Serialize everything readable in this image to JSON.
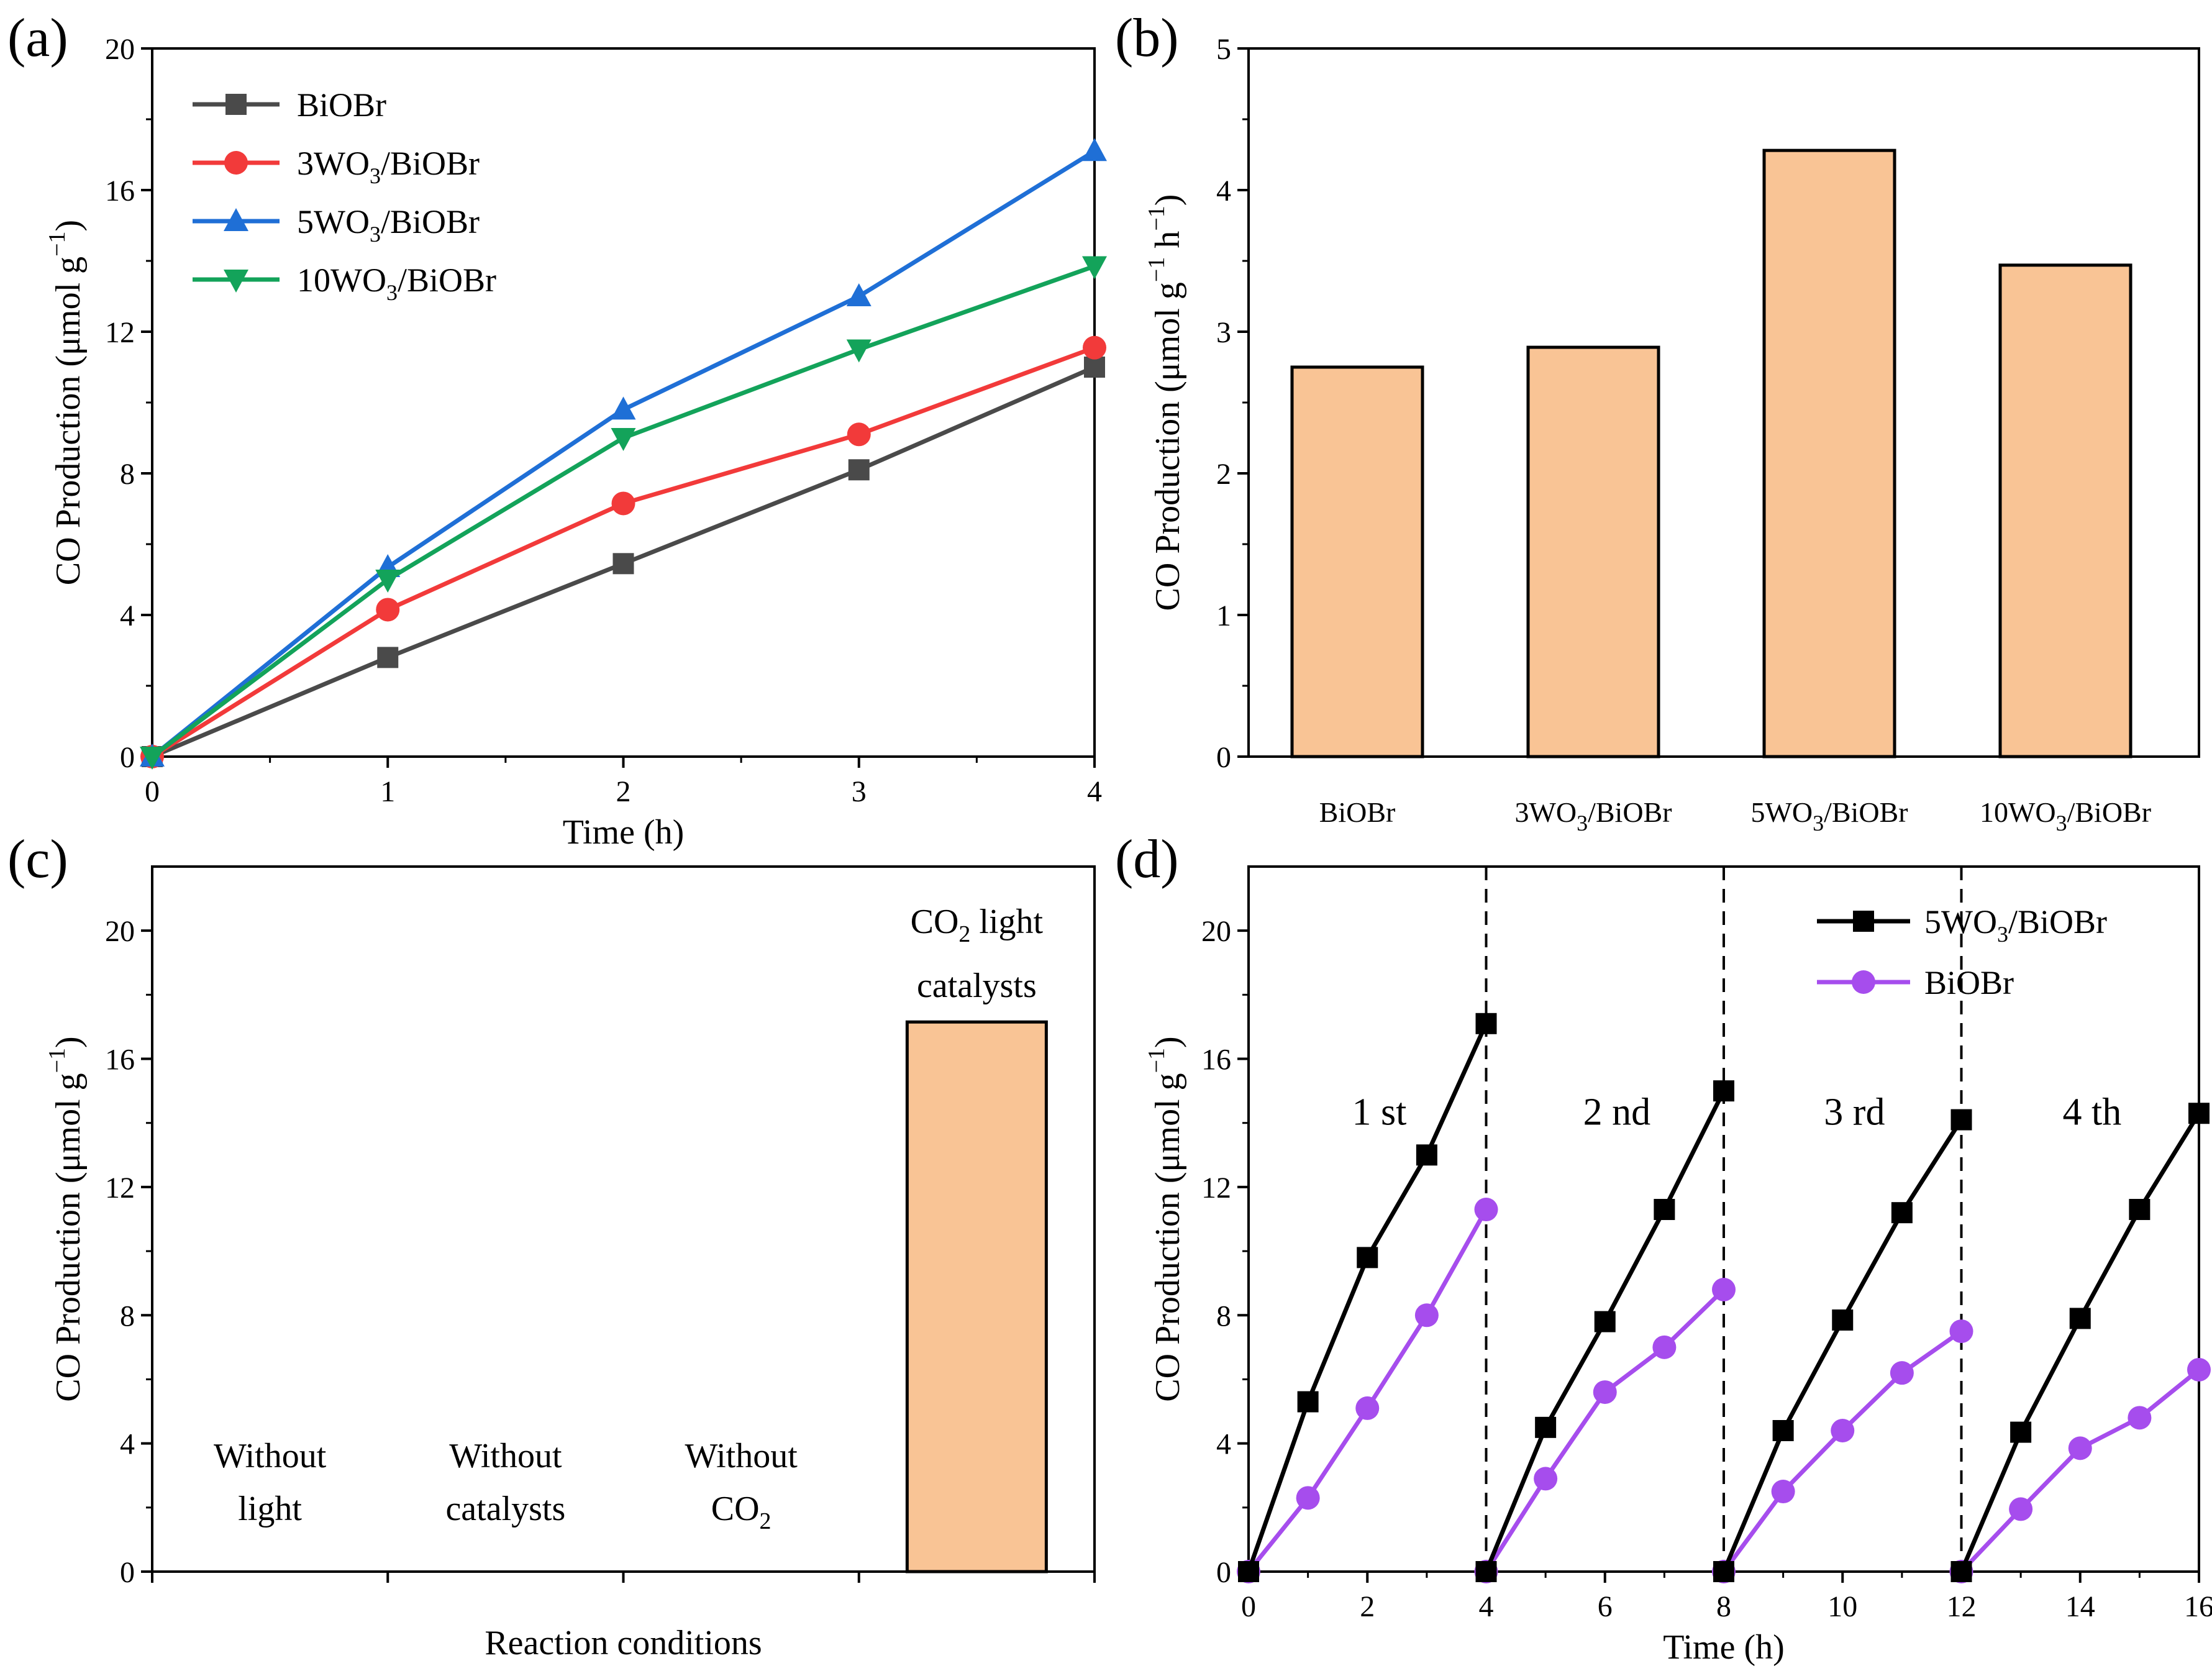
{
  "colors": {
    "gray": "#4a4a4a",
    "red": "#f23a3a",
    "blue": "#1f6fd6",
    "green": "#13a35a",
    "bar_fill": "#f9c495",
    "black": "#000000",
    "purple": "#a64ded"
  },
  "chart_data": [
    {
      "panel": "(a)",
      "type": "line",
      "xlabel": "Time (h)",
      "ylabel_main": "CO Production (μmol g",
      "ylabel_sup": "−1",
      "ylabel_end": ")",
      "xlim": [
        0,
        4
      ],
      "ylim": [
        0,
        20
      ],
      "xticks": [
        "0",
        "1",
        "2",
        "3",
        "4"
      ],
      "yticks": [
        "0",
        "4",
        "8",
        "12",
        "16",
        "20"
      ],
      "x": [
        0,
        1,
        2,
        3,
        4
      ],
      "legend_position": "top-left",
      "series": [
        {
          "name": "BiOBr",
          "legend_pre": "BiOBr",
          "legend_sub": "",
          "legend_post": "",
          "marker": "square",
          "color_key": "gray",
          "values": [
            0,
            2.8,
            5.45,
            8.1,
            11.0
          ]
        },
        {
          "name": "3WO3/BiOBr",
          "legend_pre": "3WO",
          "legend_sub": "3",
          "legend_post": "/BiOBr",
          "marker": "circle",
          "color_key": "red",
          "values": [
            0,
            4.15,
            7.15,
            9.1,
            11.55
          ]
        },
        {
          "name": "5WO3/BiOBr",
          "legend_pre": "5WO",
          "legend_sub": "3",
          "legend_post": "/BiOBr",
          "marker": "triangle-up",
          "color_key": "blue",
          "values": [
            0,
            5.35,
            9.8,
            13.0,
            17.1
          ]
        },
        {
          "name": "10WO3/BiOBr",
          "legend_pre": "10WO",
          "legend_sub": "3",
          "legend_post": "/BiOBr",
          "marker": "triangle-down",
          "color_key": "green",
          "values": [
            0,
            5.0,
            9.0,
            11.5,
            13.85
          ]
        }
      ]
    },
    {
      "panel": "(b)",
      "type": "bar",
      "ylabel_main": "CO Production (μmol g",
      "ylabel_sup1": "−1",
      "ylabel_mid": " h",
      "ylabel_sup2": "−1",
      "ylabel_end": ")",
      "ylim": [
        0,
        5
      ],
      "yticks": [
        "0",
        "1",
        "2",
        "3",
        "4",
        "5"
      ],
      "categories": [
        {
          "pre": "BiOBr",
          "sub": "",
          "post": ""
        },
        {
          "pre": "3WO",
          "sub": "3",
          "post": "/BiOBr"
        },
        {
          "pre": "5WO",
          "sub": "3",
          "post": "/BiOBr"
        },
        {
          "pre": "10WO",
          "sub": "3",
          "post": "/BiOBr"
        }
      ],
      "values": [
        2.75,
        2.89,
        4.28,
        3.47
      ]
    },
    {
      "panel": "(c)",
      "type": "bar",
      "xlabel": "Reaction conditions",
      "ylabel_main": "CO Production (μmol g",
      "ylabel_sup": "−1",
      "ylabel_end": ")",
      "ylim": [
        0,
        22
      ],
      "yticks": [
        "0",
        "4",
        "8",
        "12",
        "16",
        "20"
      ],
      "conditions": [
        {
          "line1": "Without",
          "line2": "light",
          "line2_sub": "",
          "value": 0
        },
        {
          "line1": "Without",
          "line2": "catalysts",
          "line2_sub": "",
          "value": 0
        },
        {
          "line1": "Without",
          "line2": "CO",
          "line2_sub": "2",
          "value": 0
        },
        {
          "line1_pre": "CO",
          "line1_sub": "2",
          "line1_post": "  light",
          "line2": "catalysts",
          "value": 17.15
        }
      ]
    },
    {
      "panel": "(d)",
      "type": "line",
      "xlabel": "Time (h)",
      "ylabel_main": "CO Production (μmol g",
      "ylabel_sup": "−1",
      "ylabel_end": ")",
      "xlim": [
        0,
        16
      ],
      "ylim": [
        0,
        22
      ],
      "xticks": [
        "0",
        "2",
        "4",
        "6",
        "8",
        "10",
        "12",
        "14",
        "16"
      ],
      "yticks": [
        "0",
        "4",
        "8",
        "12",
        "16",
        "20"
      ],
      "cycle_boundaries": [
        4,
        8,
        12
      ],
      "cycle_labels": [
        "1 st",
        "2 nd",
        "3 rd",
        "4 th"
      ],
      "legend_position": "top-right",
      "series": [
        {
          "name": "5WO3/BiOBr",
          "legend_pre": "5WO",
          "legend_sub": "3",
          "legend_post": "/BiOBr",
          "marker": "square",
          "color_key": "black",
          "cycles": [
            [
              [
                0,
                0
              ],
              [
                1,
                5.3
              ],
              [
                2,
                9.8
              ],
              [
                3,
                13.0
              ],
              [
                4,
                17.1
              ]
            ],
            [
              [
                4,
                0
              ],
              [
                5,
                4.5
              ],
              [
                6,
                7.8
              ],
              [
                7,
                11.3
              ],
              [
                8,
                15.0
              ]
            ],
            [
              [
                8,
                0
              ],
              [
                9,
                4.4
              ],
              [
                10,
                7.85
              ],
              [
                11,
                11.2
              ],
              [
                12,
                14.1
              ]
            ],
            [
              [
                12,
                0
              ],
              [
                13,
                4.35
              ],
              [
                14,
                7.9
              ],
              [
                15,
                11.3
              ],
              [
                16,
                14.3
              ]
            ]
          ]
        },
        {
          "name": "BiOBr",
          "legend_pre": "BiOBr",
          "legend_sub": "",
          "legend_post": "",
          "marker": "circle",
          "color_key": "purple",
          "cycles": [
            [
              [
                0,
                0
              ],
              [
                1,
                2.3
              ],
              [
                2,
                5.1
              ],
              [
                3,
                8.0
              ],
              [
                4,
                11.3
              ]
            ],
            [
              [
                4,
                0
              ],
              [
                5,
                2.9
              ],
              [
                6,
                5.6
              ],
              [
                7,
                7.0
              ],
              [
                8,
                8.8
              ]
            ],
            [
              [
                8,
                0
              ],
              [
                9,
                2.5
              ],
              [
                10,
                4.4
              ],
              [
                11,
                6.2
              ],
              [
                12,
                7.5
              ]
            ],
            [
              [
                12,
                0
              ],
              [
                13,
                1.95
              ],
              [
                14,
                3.85
              ],
              [
                15,
                4.8
              ],
              [
                16,
                6.3
              ]
            ]
          ]
        }
      ]
    }
  ]
}
